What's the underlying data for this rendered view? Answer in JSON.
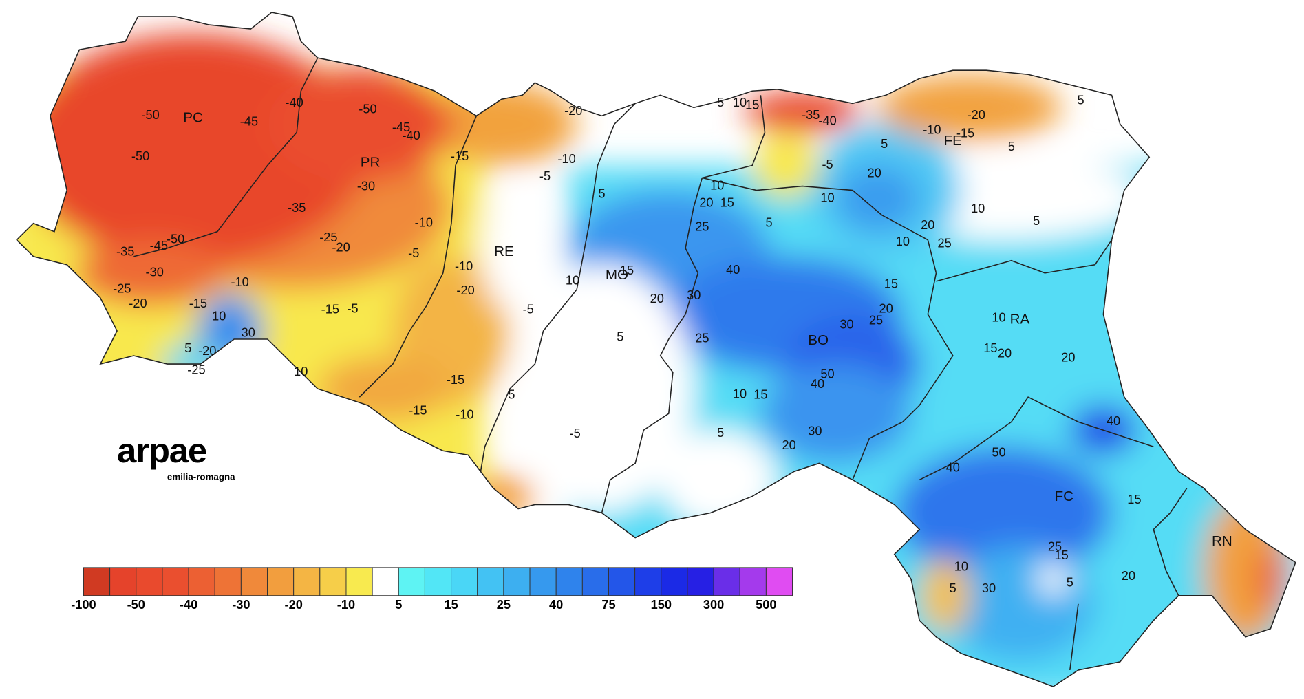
{
  "logo": {
    "name": "arpae",
    "subtitle": "emilia-romagna"
  },
  "provinces": [
    "PC",
    "PR",
    "RE",
    "MO",
    "BO",
    "FE",
    "RA",
    "FC",
    "RN"
  ],
  "contour_labels": [
    "-50",
    "-50",
    "-45",
    "-40",
    "-50",
    "-45",
    "-40",
    "-30",
    "-35",
    "-25",
    "-20",
    "-10",
    "-5",
    "-15",
    "-20",
    "-10",
    "-5",
    "-45",
    "-50",
    "-35",
    "-30",
    "-25",
    "-20",
    "-15",
    "-10",
    "10",
    "30",
    "-20",
    "-25",
    "5",
    "-15",
    "-5",
    "-20",
    "-10",
    "-5",
    "-15",
    "-15",
    "-10",
    "10",
    "5",
    "-5",
    "5",
    "10",
    "15",
    "20",
    "5",
    "10",
    "20",
    "15",
    "25",
    "40",
    "30",
    "25",
    "10",
    "15",
    "5",
    "20",
    "30",
    "50",
    "40",
    "30",
    "25",
    "20",
    "15",
    "5",
    "10",
    "5",
    "20",
    "-5",
    "5",
    "10",
    "15",
    "-35",
    "-40",
    "-20",
    "-10",
    "-15",
    "5",
    "5",
    "10",
    "20",
    "25",
    "10",
    "10",
    "15",
    "20",
    "20",
    "40",
    "50",
    "40",
    "15",
    "20",
    "25",
    "15",
    "5",
    "10",
    "5",
    "30",
    "5"
  ],
  "legend": {
    "ticks": [
      -100,
      -50,
      -40,
      -30,
      -20,
      -10,
      5,
      15,
      25,
      40,
      75,
      150,
      300,
      500
    ],
    "colors": [
      "#d03a22",
      "#e5432b",
      "#e94a2d",
      "#ea4f2f",
      "#ec6033",
      "#ee7336",
      "#f0893a",
      "#f29e3e",
      "#f4b544",
      "#f6ce49",
      "#f8ea4f",
      "#ffffff",
      "#5ef3f3",
      "#52e6f6",
      "#4ad6f6",
      "#43c2f3",
      "#3daff0",
      "#3699ee",
      "#2f83ec",
      "#296dea",
      "#2356e9",
      "#1e3ee8",
      "#1b2ae6",
      "#2620e4",
      "#6a2ee8",
      "#a43aec",
      "#e04cf2"
    ]
  }
}
